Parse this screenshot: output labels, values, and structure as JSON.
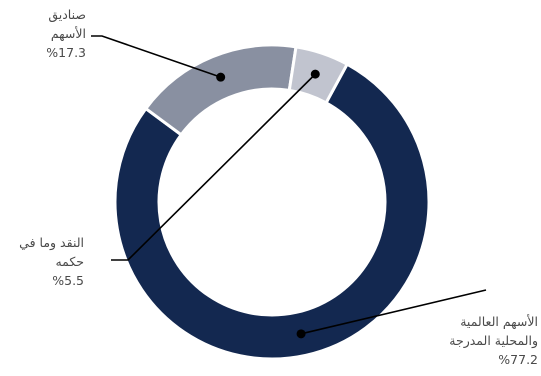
{
  "chart_data": {
    "type": "pie",
    "donut": true,
    "categories": [
      "الأسهم العالمية والمحلية المدرجة",
      "صناديق الأسهم",
      "النقد وما في حكمه"
    ],
    "values": [
      77.2,
      17.3,
      5.5
    ],
    "colors": [
      "#132850",
      "#8990a1",
      "#c1c4cf"
    ],
    "labels": [
      {
        "line1": "الأسهم العالمية",
        "line2": "والمحلية المدرجة",
        "pct": "%77.2"
      },
      {
        "line1": "صناديق",
        "line2": "الأسهم",
        "pct": "%17.3"
      },
      {
        "line1": "النقد وما في",
        "line2": "حكمه",
        "pct": "%5.5"
      }
    ]
  }
}
